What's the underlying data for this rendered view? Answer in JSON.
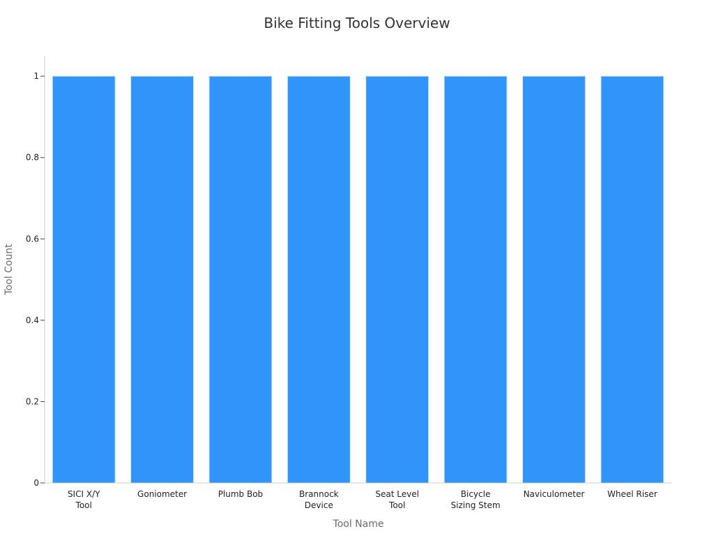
{
  "chart_data": {
    "type": "bar",
    "title": "Bike Fitting Tools Overview",
    "xlabel": "Tool Name",
    "ylabel": "Tool Count",
    "categories": [
      [
        "SICI X/Y",
        "Tool"
      ],
      [
        "Goniometer"
      ],
      [
        "Plumb Bob"
      ],
      [
        "Brannock",
        "Device"
      ],
      [
        "Seat Level",
        "Tool"
      ],
      [
        "Bicycle",
        "Sizing Stem"
      ],
      [
        "Naviculometer"
      ],
      [
        "Wheel Riser"
      ]
    ],
    "values": [
      1,
      1,
      1,
      1,
      1,
      1,
      1,
      1
    ],
    "ylim": [
      0,
      1.05
    ],
    "yticks": [
      0,
      0.2,
      0.4,
      0.6,
      0.8,
      1
    ],
    "ytick_labels": [
      "0",
      "0.2",
      "0.4",
      "0.6",
      "0.8",
      "1"
    ],
    "bar_color": "#3094f8",
    "grid": false,
    "legend": "none"
  }
}
